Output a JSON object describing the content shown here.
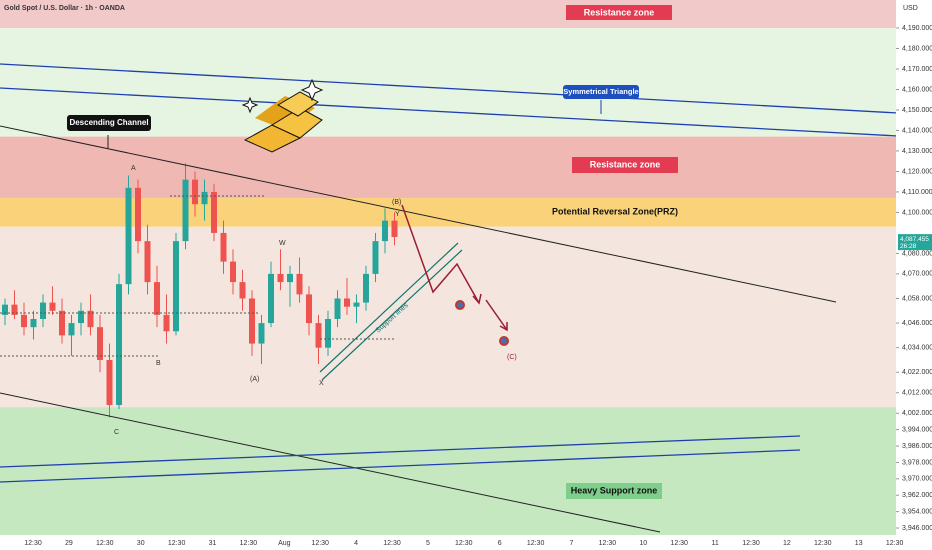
{
  "header": {
    "title": "Gold Spot / U.S. Dollar · 1h · OANDA",
    "currency": "USD"
  },
  "zones": [
    {
      "name": "resistance-top",
      "from": 4190,
      "to": 4204,
      "color": "#f2c9c9"
    },
    {
      "name": "green-upper",
      "from": 4137,
      "to": 4190,
      "color": "#e6f5e1"
    },
    {
      "name": "resistance",
      "from": 4107,
      "to": 4137,
      "color": "#f0b8b2"
    },
    {
      "name": "prz",
      "from": 4093,
      "to": 4107,
      "color": "#f9d27a"
    },
    {
      "name": "range",
      "from": 4005,
      "to": 4093,
      "color": "#f4e6df"
    },
    {
      "name": "support",
      "from": 3940,
      "to": 4005,
      "color": "#c6e8c0"
    }
  ],
  "labels": {
    "resistance_top": "Resistance zone",
    "triangle": "Symmetrical Triangle",
    "channel": "Descending Channel",
    "resistance": "Resistance zone",
    "prz": "Potential Reversal Zone(PRZ)",
    "support": "Heavy Support zone",
    "support_lines": "Support lines"
  },
  "waves": [
    "A",
    "B",
    "C",
    "(A)",
    "(B)",
    "(C)",
    "W",
    "X",
    "Y"
  ],
  "current_price": {
    "label": "4,087.455",
    "timer": "26:28",
    "value": 4087.455
  },
  "price_axis": {
    "ylim": [
      3946,
      4190
    ],
    "ticks": [
      {
        "value": 4190,
        "label": "4,190.000"
      },
      {
        "value": 4180,
        "label": "4,180.000"
      },
      {
        "value": 4170,
        "label": "4,170.000"
      },
      {
        "value": 4160,
        "label": "4,160.000"
      },
      {
        "value": 4150,
        "label": "4,150.000"
      },
      {
        "value": 4140,
        "label": "4,140.000"
      },
      {
        "value": 4130,
        "label": "4,130.000"
      },
      {
        "value": 4120,
        "label": "4,120.000"
      },
      {
        "value": 4110,
        "label": "4,110.000"
      },
      {
        "value": 4100,
        "label": "4,100.000"
      },
      {
        "value": 4080,
        "label": "4,080.000"
      },
      {
        "value": 4070,
        "label": "4,070.000"
      },
      {
        "value": 4058,
        "label": "4,058.000"
      },
      {
        "value": 4046,
        "label": "4,046.000"
      },
      {
        "value": 4034,
        "label": "4,034.000"
      },
      {
        "value": 4022,
        "label": "4,022.000"
      },
      {
        "value": 4012,
        "label": "4,012.000"
      },
      {
        "value": 4002,
        "label": "4,002.000"
      },
      {
        "value": 3994,
        "label": "3,994.000"
      },
      {
        "value": 3986,
        "label": "3,986.000"
      },
      {
        "value": 3978,
        "label": "3,978.000"
      },
      {
        "value": 3970,
        "label": "3,970.000"
      },
      {
        "value": 3962,
        "label": "3,962.000"
      },
      {
        "value": 3954,
        "label": "3,954.000"
      },
      {
        "value": 3946,
        "label": "3,946.000"
      }
    ]
  },
  "time_axis": [
    "12:30",
    "29",
    "12:30",
    "30",
    "12:30",
    "31",
    "12:30",
    "Aug",
    "12:30",
    "4",
    "12:30",
    "5",
    "12:30",
    "6",
    "12:30",
    "7",
    "12:30",
    "10",
    "12:30",
    "11",
    "12:30",
    "12",
    "12:30",
    "13",
    "12:30"
  ],
  "candle_colors": {
    "up": "#26a69a",
    "down": "#ef5350"
  },
  "candles": [
    [
      4050,
      4058,
      4045,
      4055
    ],
    [
      4055,
      4062,
      4048,
      4050
    ],
    [
      4050,
      4056,
      4040,
      4044
    ],
    [
      4044,
      4052,
      4038,
      4048
    ],
    [
      4048,
      4060,
      4044,
      4056
    ],
    [
      4056,
      4064,
      4050,
      4052
    ],
    [
      4052,
      4058,
      4036,
      4040
    ],
    [
      4040,
      4050,
      4030,
      4046
    ],
    [
      4046,
      4056,
      4040,
      4052
    ],
    [
      4052,
      4060,
      4040,
      4044
    ],
    [
      4044,
      4050,
      4022,
      4028
    ],
    [
      4028,
      4036,
      4000,
      4006
    ],
    [
      4006,
      4070,
      4004,
      4065
    ],
    [
      4065,
      4118,
      4060,
      4112
    ],
    [
      4112,
      4116,
      4080,
      4086
    ],
    [
      4086,
      4094,
      4060,
      4066
    ],
    [
      4066,
      4074,
      4044,
      4050
    ],
    [
      4050,
      4060,
      4036,
      4042
    ],
    [
      4042,
      4090,
      4040,
      4086
    ],
    [
      4086,
      4124,
      4082,
      4116
    ],
    [
      4116,
      4120,
      4098,
      4104
    ],
    [
      4104,
      4116,
      4096,
      4110
    ],
    [
      4110,
      4114,
      4086,
      4090
    ],
    [
      4090,
      4096,
      4070,
      4076
    ],
    [
      4076,
      4082,
      4060,
      4066
    ],
    [
      4066,
      4072,
      4052,
      4058
    ],
    [
      4058,
      4062,
      4030,
      4036
    ],
    [
      4036,
      4050,
      4026,
      4046
    ],
    [
      4046,
      4076,
      4044,
      4070
    ],
    [
      4070,
      4082,
      4062,
      4066
    ],
    [
      4066,
      4074,
      4054,
      4070
    ],
    [
      4070,
      4078,
      4056,
      4060
    ],
    [
      4060,
      4064,
      4040,
      4046
    ],
    [
      4046,
      4050,
      4026,
      4034
    ],
    [
      4034,
      4052,
      4030,
      4048
    ],
    [
      4048,
      4062,
      4044,
      4058
    ],
    [
      4058,
      4068,
      4050,
      4054
    ],
    [
      4054,
      4060,
      4046,
      4056
    ],
    [
      4056,
      4074,
      4052,
      4070
    ],
    [
      4070,
      4090,
      4066,
      4086
    ],
    [
      4086,
      4102,
      4080,
      4096
    ],
    [
      4096,
      4100,
      4084,
      4088
    ]
  ]
}
